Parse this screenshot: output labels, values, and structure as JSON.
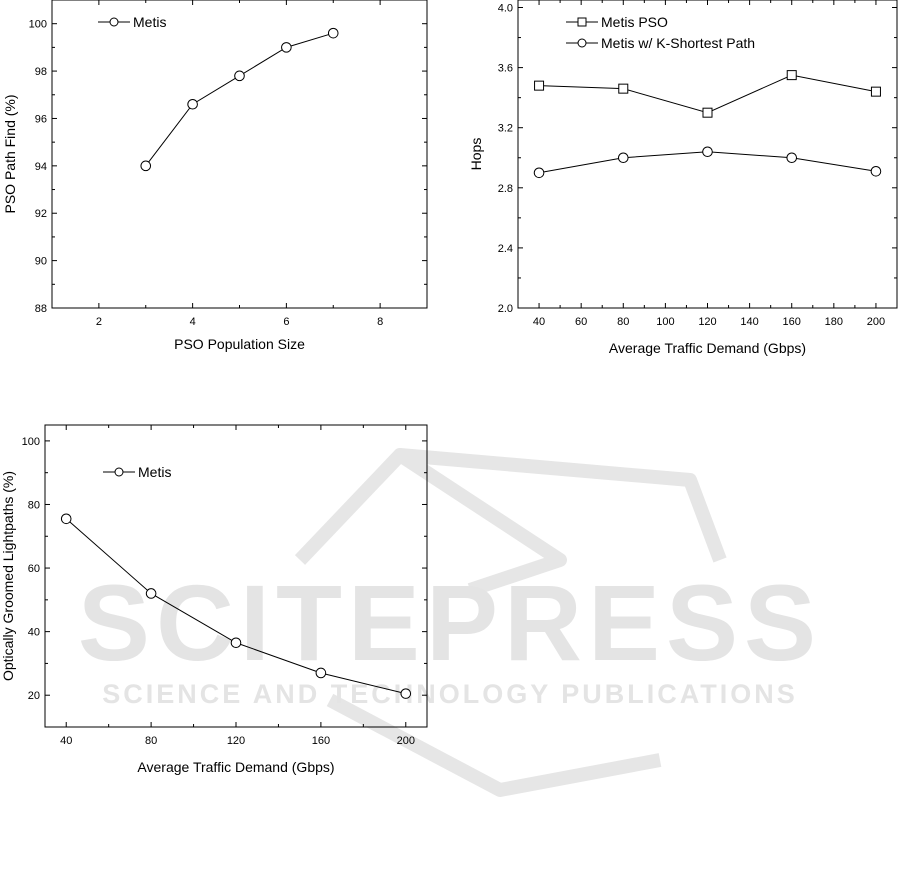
{
  "chart_data": [
    {
      "type": "line",
      "xlabel": "PSO Population Size",
      "ylabel": "PSO Path Find (%)",
      "xlim": [
        1,
        9
      ],
      "ylim": [
        88,
        101
      ],
      "xticks": [
        2,
        4,
        6,
        8
      ],
      "yticks": [
        88,
        90,
        92,
        94,
        96,
        98,
        100
      ],
      "legend": "top-left",
      "series": [
        {
          "name": "Metis",
          "marker": "circle",
          "x": [
            3,
            4,
            5,
            6,
            7
          ],
          "y": [
            94.0,
            96.6,
            97.8,
            99.0,
            99.6
          ]
        }
      ]
    },
    {
      "type": "line",
      "xlabel": "Average Traffic Demand (Gbps)",
      "ylabel": "Hops",
      "xlim": [
        30,
        210
      ],
      "ylim": [
        2.0,
        4.05
      ],
      "xticks": [
        40,
        60,
        80,
        100,
        120,
        140,
        160,
        180,
        200
      ],
      "yticks": [
        2.0,
        2.4,
        2.8,
        3.2,
        3.6,
        4.0
      ],
      "legend": "top-left",
      "series": [
        {
          "name": "Metis PSO",
          "marker": "square",
          "x": [
            40,
            80,
            120,
            160,
            200
          ],
          "y": [
            3.48,
            3.46,
            3.3,
            3.55,
            3.44
          ]
        },
        {
          "name": "Metis w/ K-Shortest Path",
          "marker": "circle",
          "x": [
            40,
            80,
            120,
            160,
            200
          ],
          "y": [
            2.9,
            3.0,
            3.04,
            3.0,
            2.91
          ]
        }
      ]
    },
    {
      "type": "line",
      "xlabel": "Average Traffic Demand (Gbps)",
      "ylabel": "Optically Groomed Lightpaths (%)",
      "xlim": [
        30,
        210
      ],
      "ylim": [
        10,
        105
      ],
      "xticks": [
        40,
        80,
        120,
        160,
        200
      ],
      "yticks": [
        20,
        40,
        60,
        80,
        100
      ],
      "legend": "top-left",
      "series": [
        {
          "name": "Metis",
          "marker": "circle",
          "x": [
            40,
            80,
            120,
            160,
            200
          ],
          "y": [
            75.5,
            52.0,
            36.5,
            27.0,
            20.5
          ]
        }
      ]
    }
  ],
  "watermark": {
    "line1": "SCITEPRESS",
    "line2": "SCIENCE AND TECHNOLOGY PUBLICATIONS",
    "color": "#e3e3e3"
  }
}
